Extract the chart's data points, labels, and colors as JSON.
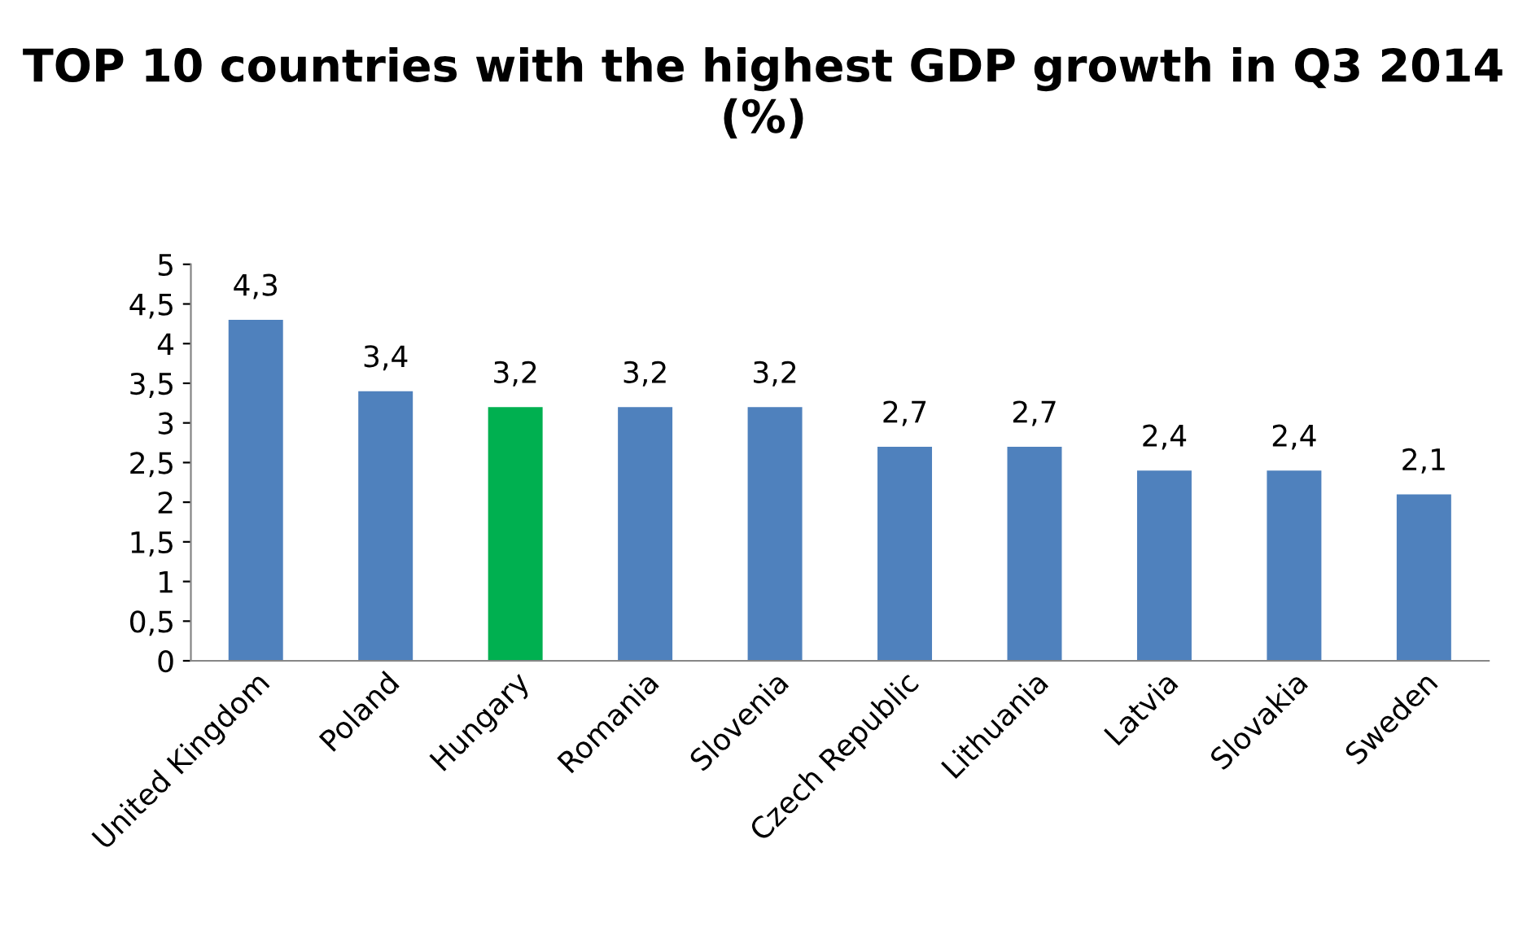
{
  "chart_data": {
    "type": "bar",
    "title": "TOP 10 countries with the highest GDP growth in Q3 2014 (%)",
    "categories": [
      "United Kingdom",
      "Poland",
      "Hungary",
      "Romania",
      "Slovenia",
      "Czech Republic",
      "Lithuania",
      "Latvia",
      "Slovakia",
      "Sweden"
    ],
    "values": [
      4.3,
      3.4,
      3.2,
      3.2,
      3.2,
      2.7,
      2.7,
      2.4,
      2.4,
      2.1
    ],
    "colors": [
      "#4f81bd",
      "#4f81bd",
      "#00b050",
      "#4f81bd",
      "#4f81bd",
      "#4f81bd",
      "#4f81bd",
      "#4f81bd",
      "#4f81bd",
      "#4f81bd"
    ],
    "value_labels": [
      "4,3",
      "3,4",
      "3,2",
      "3,2",
      "3,2",
      "2,7",
      "2,7",
      "2,4",
      "2,4",
      "2,1"
    ],
    "ylim": [
      0,
      5
    ],
    "yticks": [
      0,
      {
        "value": 0.5,
        "label": "0,5"
      },
      1,
      {
        "value": 1.5,
        "label": "1,5"
      },
      2,
      {
        "value": 2.5,
        "label": "2,5"
      },
      3,
      {
        "value": 3.5,
        "label": "3,5"
      },
      4,
      {
        "value": 4.5,
        "label": "4,5"
      },
      5
    ],
    "grid": false,
    "legend": false
  }
}
